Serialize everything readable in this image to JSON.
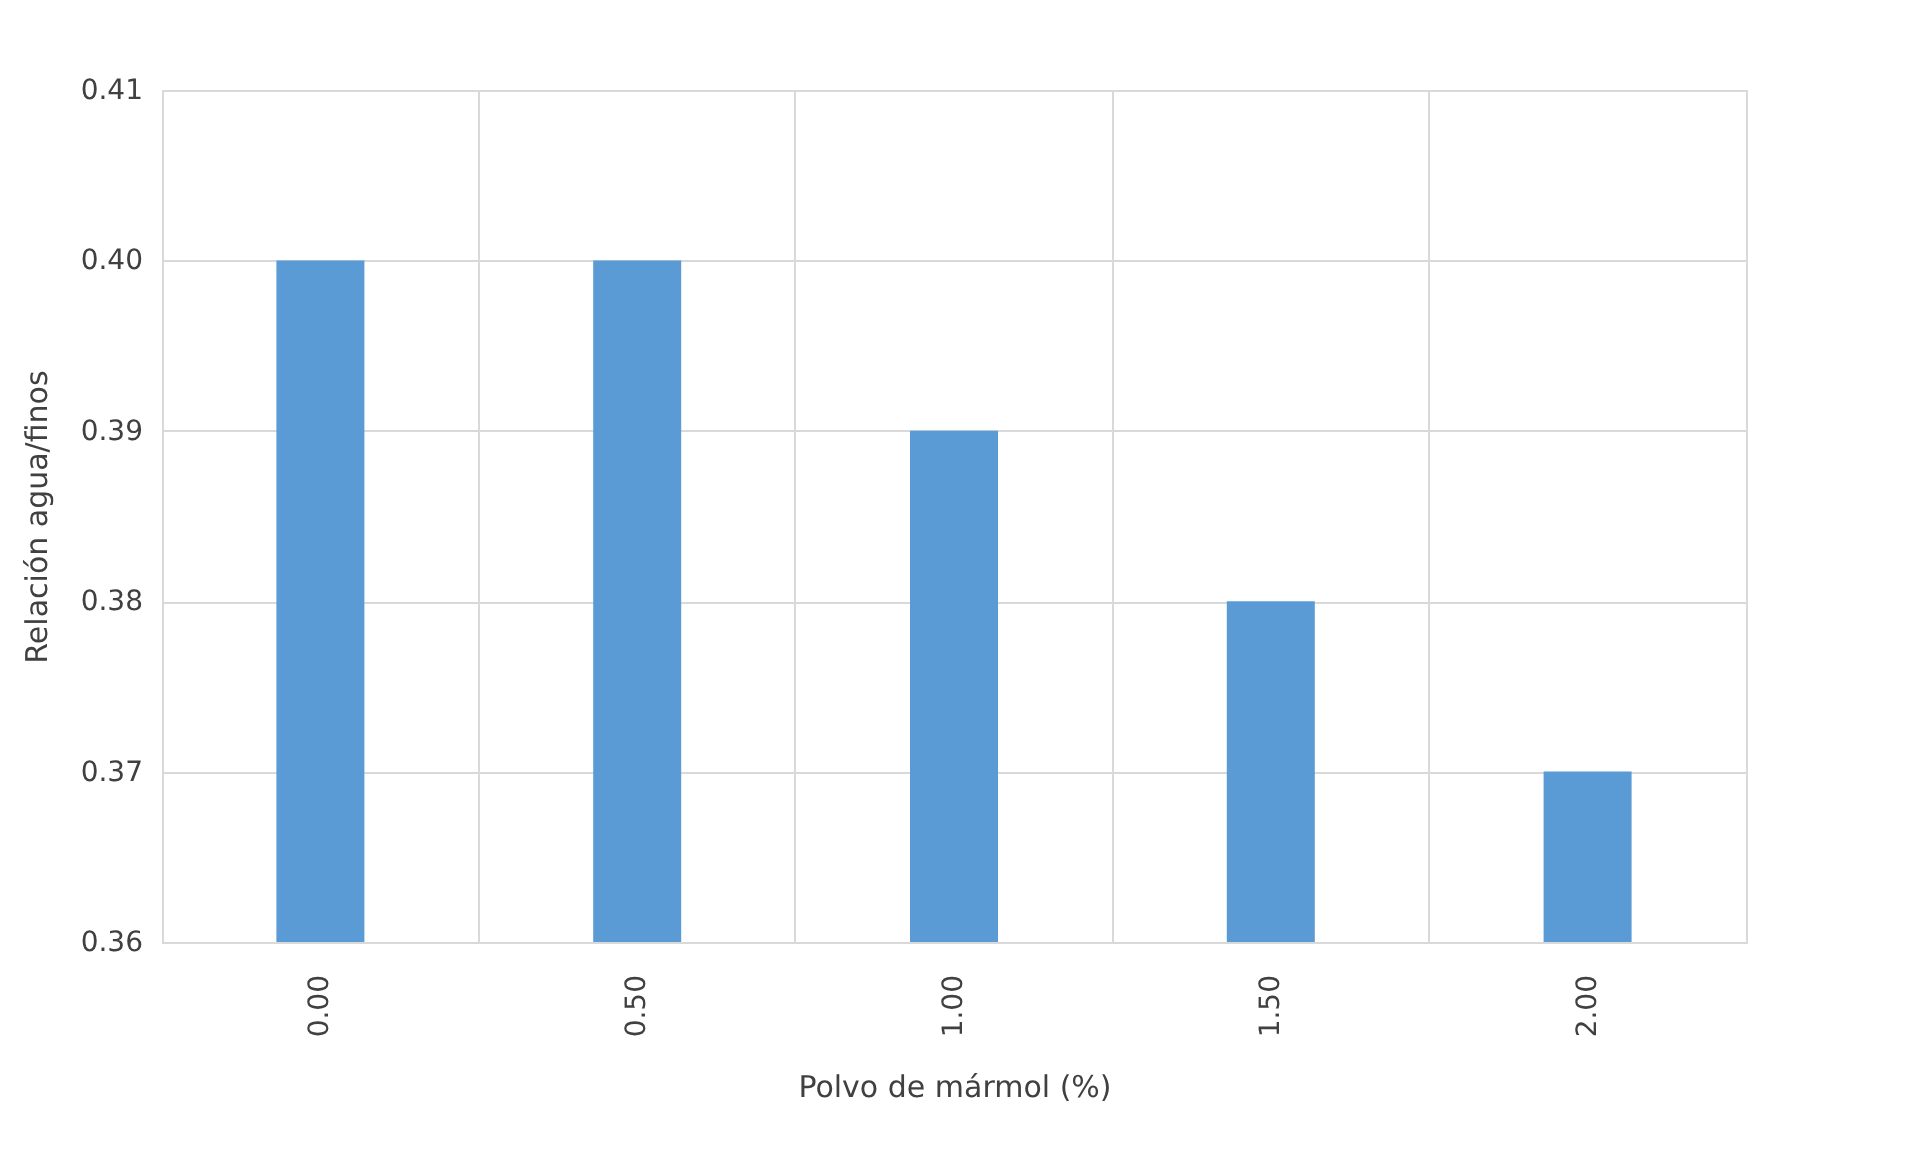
{
  "chart_data": {
    "type": "bar",
    "xlabel": "Polvo de mármol (%)",
    "ylabel": "Relación agua/finos",
    "categories": [
      "0.00",
      "0.50",
      "1.00",
      "1.50",
      "2.00"
    ],
    "series": [
      {
        "color": "#5b9bd5",
        "values": [
          0.4,
          0.4,
          0.39,
          0.38,
          0.37
        ]
      }
    ],
    "ylim": [
      0.36,
      0.41
    ],
    "yticks": [
      0.36,
      0.37,
      0.38,
      0.39,
      {
        "value": 0.4,
        "label": "0.40"
      },
      0.41
    ],
    "grid": true
  }
}
